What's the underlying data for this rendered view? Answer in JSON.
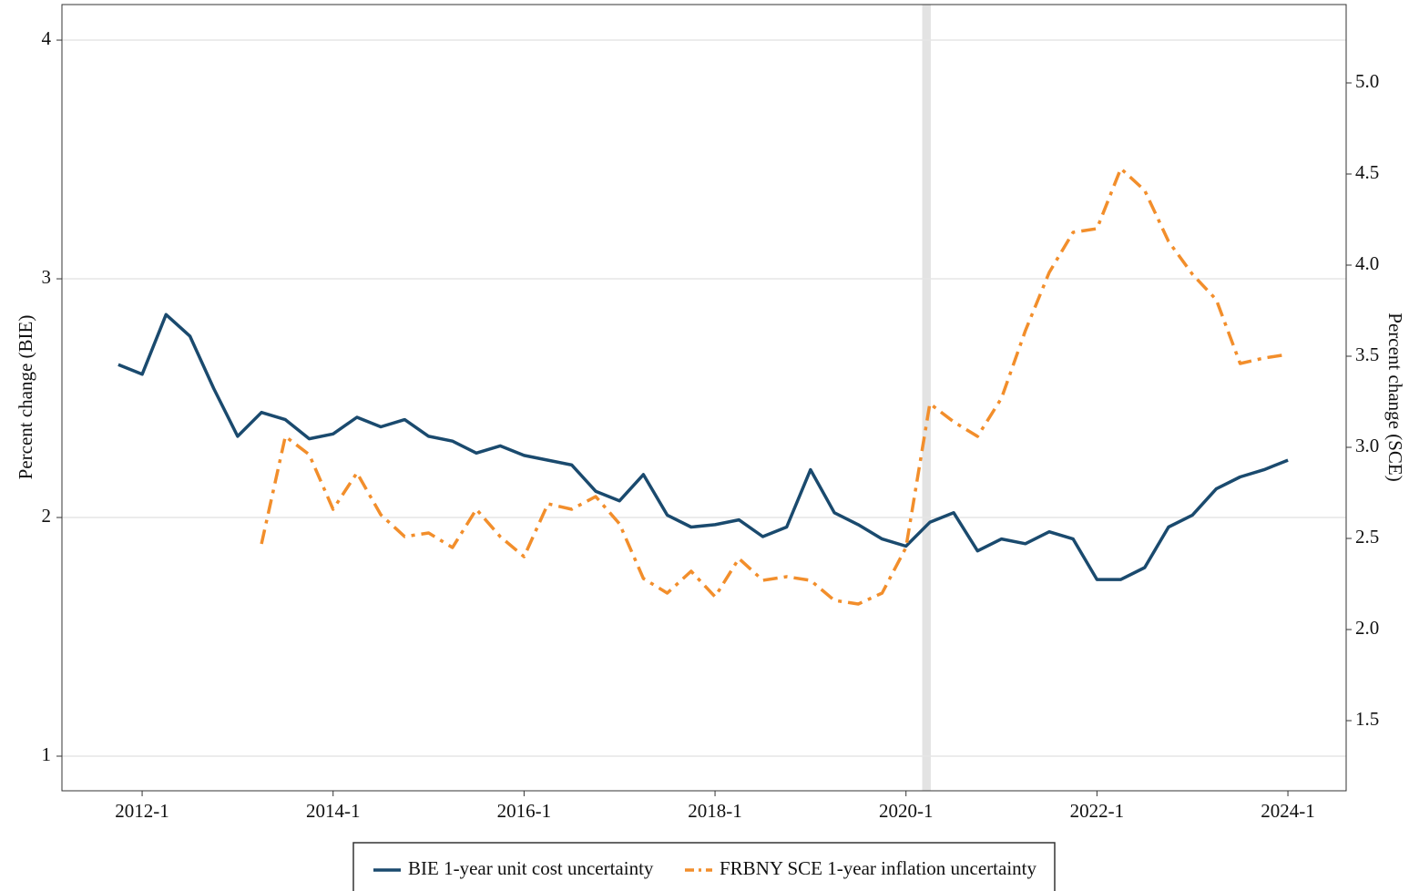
{
  "chart_data": {
    "type": "line",
    "y_label": "Percent change (BIE)",
    "y2_label": "Percent change (SCE)",
    "x": [
      2011.75,
      2012,
      2012.25,
      2012.5,
      2012.75,
      2013,
      2013.25,
      2013.5,
      2013.75,
      2014,
      2014.25,
      2014.5,
      2014.75,
      2015,
      2015.25,
      2015.5,
      2015.75,
      2016,
      2016.25,
      2016.5,
      2016.75,
      2017,
      2017.25,
      2017.5,
      2017.75,
      2018,
      2018.25,
      2018.5,
      2018.75,
      2019,
      2019.25,
      2019.5,
      2019.75,
      2020,
      2020.25,
      2020.5,
      2020.75,
      2021,
      2021.25,
      2021.5,
      2021.75,
      2022,
      2022.25,
      2022.5,
      2022.75,
      2023,
      2023.25,
      2023.5,
      2023.75,
      2024
    ],
    "series": [
      {
        "name": "BIE 1-year unit cost uncertainty",
        "color": "#1a4a6e",
        "style": "solid",
        "values": [
          2.64,
          2.6,
          2.85,
          2.76,
          2.54,
          2.34,
          2.44,
          2.41,
          2.33,
          2.35,
          2.42,
          2.38,
          2.41,
          2.34,
          2.32,
          2.27,
          2.3,
          2.26,
          2.24,
          2.22,
          2.11,
          2.07,
          2.18,
          2.01,
          1.96,
          1.97,
          1.99,
          1.92,
          1.96,
          2.2,
          2.02,
          1.97,
          1.91,
          1.88,
          1.98,
          2.02,
          1.86,
          1.91,
          1.89,
          1.94,
          1.91,
          1.74,
          1.74,
          1.79,
          1.96,
          2.01,
          2.12,
          2.17,
          2.2,
          2.24
        ]
      },
      {
        "name": "FRBNY SCE 1-year inflation uncertainty",
        "color": "#f28e2b",
        "style": "dashdot",
        "axis": "y2",
        "values": [
          null,
          null,
          null,
          null,
          null,
          null,
          2.47,
          3.06,
          2.96,
          2.66,
          2.86,
          2.63,
          2.51,
          2.53,
          2.45,
          2.66,
          2.51,
          2.4,
          2.69,
          2.66,
          2.73,
          2.58,
          2.28,
          2.2,
          2.32,
          2.18,
          2.39,
          2.27,
          2.29,
          2.27,
          2.16,
          2.14,
          2.2,
          2.45,
          3.24,
          3.14,
          3.06,
          3.27,
          3.64,
          3.96,
          4.18,
          4.2,
          4.53,
          4.41,
          4.13,
          3.95,
          3.81,
          3.46,
          3.49,
          3.51
        ]
      }
    ],
    "xlim": [
      2011.16,
      2024.61
    ],
    "xticks": [
      {
        "value": 2012,
        "label": "2012-1"
      },
      {
        "value": 2014,
        "label": "2014-1"
      },
      {
        "value": 2016,
        "label": "2016-1"
      },
      {
        "value": 2018,
        "label": "2018-1"
      },
      {
        "value": 2020,
        "label": "2020-1"
      },
      {
        "value": 2022,
        "label": "2022-1"
      },
      {
        "value": 2024,
        "label": "2024-1"
      }
    ],
    "ylim": [
      0.855,
      4.149
    ],
    "yticks": [
      1,
      2,
      3,
      4
    ],
    "y2lim": [
      1.115,
      5.43
    ],
    "y2ticks": [
      1.5,
      {
        "value": 2,
        "label": "2.0"
      },
      2.5,
      {
        "value": 3,
        "label": "3.0"
      },
      3.5,
      {
        "value": 4,
        "label": "4.0"
      },
      4.5,
      {
        "value": 5,
        "label": "5.0"
      }
    ],
    "grid": true,
    "shaded_x": [
      2020.17,
      2020.26
    ],
    "shade_color": "#e3e3e3",
    "legend": "bottom"
  }
}
